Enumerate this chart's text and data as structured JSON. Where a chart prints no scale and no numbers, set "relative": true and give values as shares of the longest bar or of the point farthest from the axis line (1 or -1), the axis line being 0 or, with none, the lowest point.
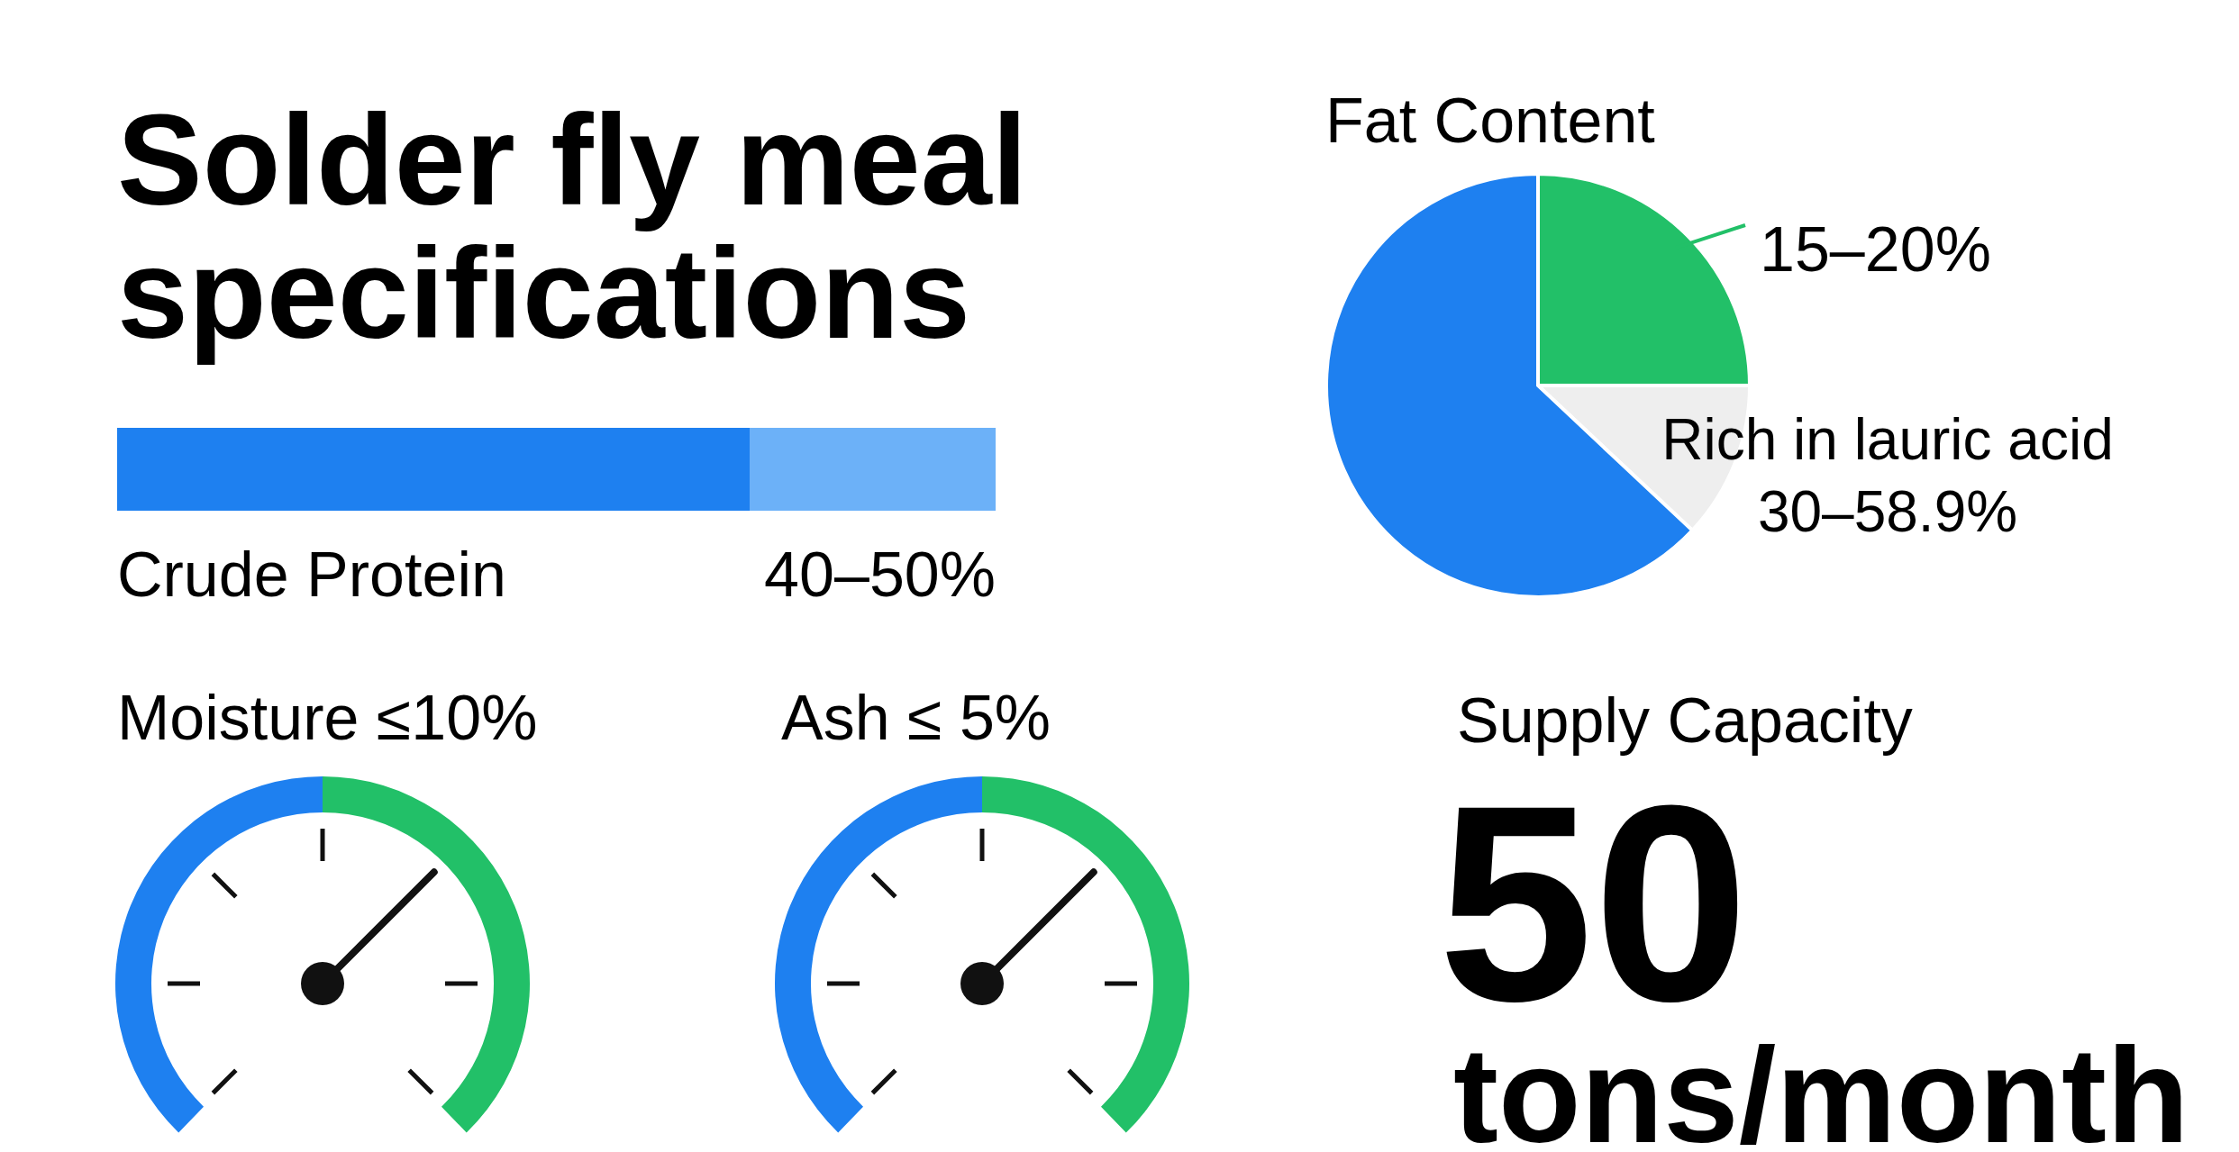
{
  "chart_data": [
    {
      "type": "bar",
      "title": "Solder fly meal specifications",
      "orientation": "horizontal",
      "stacked": true,
      "relative": true,
      "categories": [
        null
      ],
      "series": [
        {
          "color": "#1e80f0",
          "values": [
            0.72
          ]
        },
        {
          "color": "#6cb1f8",
          "values": [
            0.28
          ]
        }
      ],
      "annotations": [
        "Crude Protein",
        "40–50%"
      ]
    },
    {
      "type": "pie",
      "title": "Fat Content",
      "categories": [
        null,
        null,
        null
      ],
      "values": [
        25,
        12,
        63
      ],
      "colors": [
        "#22c068",
        "#eeeeee",
        "#1e80f0"
      ],
      "annotations": [
        "15–20%",
        "Rich in lauric acid",
        "30–58.9%"
      ]
    },
    {
      "type": "donut",
      "title": "Moisture ≤10%",
      "categories": [
        null,
        null
      ],
      "values": [
        50,
        50
      ],
      "colors": [
        "#1e80f0",
        "#22c068"
      ]
    },
    {
      "type": "donut",
      "title": "Ash ≤ 5%",
      "categories": [
        null,
        null
      ],
      "values": [
        50,
        50
      ],
      "colors": [
        "#1e80f0",
        "#22c068"
      ]
    },
    {
      "type": "other",
      "title": "Supply Capacity",
      "annotations": [
        "50",
        "tons/month"
      ]
    }
  ]
}
